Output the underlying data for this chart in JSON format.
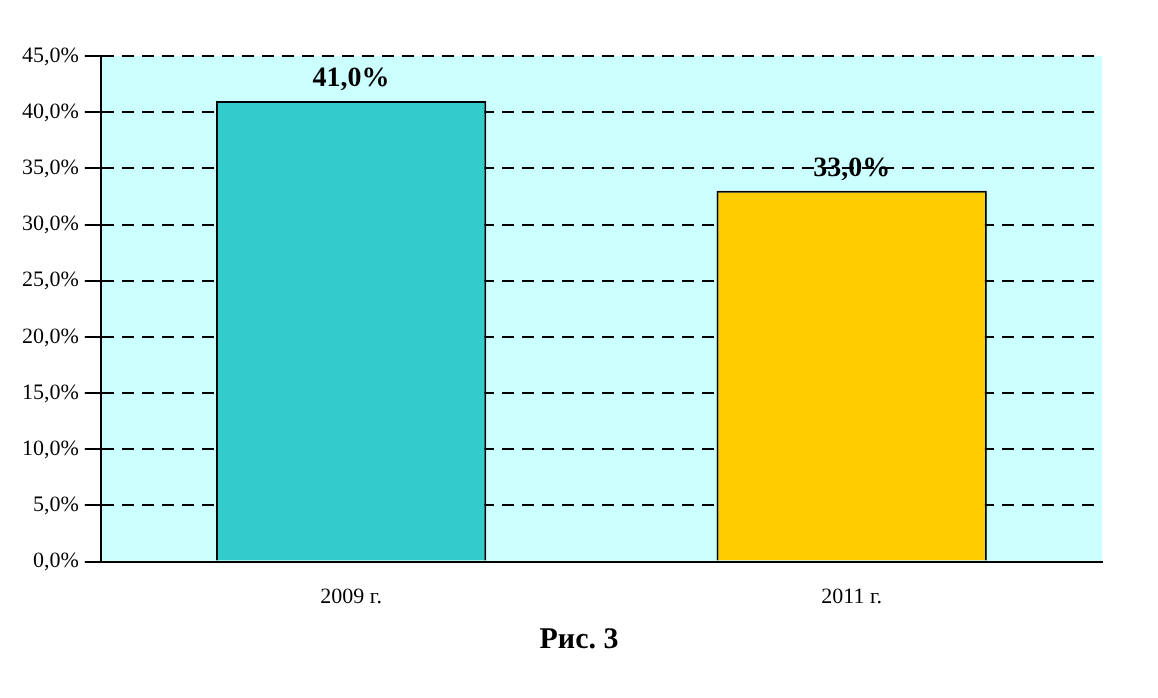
{
  "chart_data": {
    "type": "bar",
    "categories": [
      "2009 г.",
      "2011 г."
    ],
    "values": [
      41.0,
      33.0
    ],
    "colors": [
      "#33cccc",
      "#ffcc00"
    ],
    "value_labels": [
      "41,0%",
      "33,0%"
    ],
    "ylim": [
      0,
      45
    ],
    "yticks": [
      {
        "value": 0,
        "label": "0,0%"
      },
      {
        "value": 5,
        "label": "5,0%"
      },
      {
        "value": 10,
        "label": "10,0%"
      },
      {
        "value": 15,
        "label": "15,0%"
      },
      {
        "value": 20,
        "label": "20,0%"
      },
      {
        "value": 25,
        "label": "25,0%"
      },
      {
        "value": 30,
        "label": "30,0%"
      },
      {
        "value": 35,
        "label": "35,0%"
      },
      {
        "value": 40,
        "label": "40,0%"
      },
      {
        "value": 45,
        "label": "45,0%"
      }
    ],
    "grid": "y",
    "annotations": [
      "Рис. 3"
    ]
  }
}
